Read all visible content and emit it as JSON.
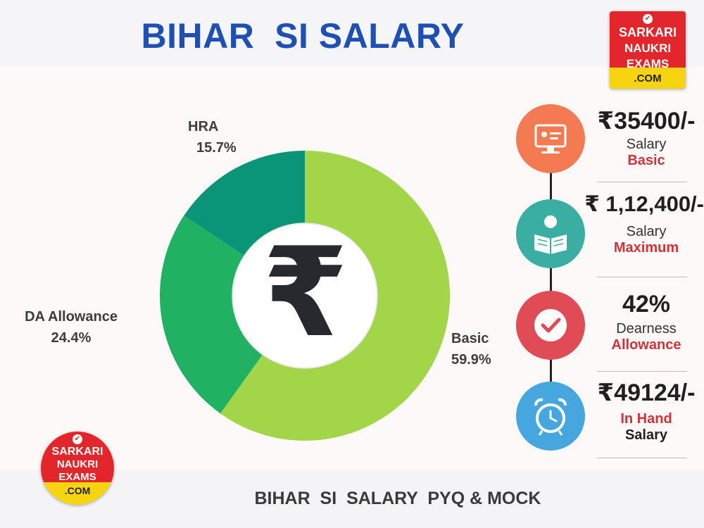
{
  "title": "BIHAR  SI SALARY",
  "footer": "BIHAR  SI  SALARY  PYQ & MOCK",
  "logo": {
    "line1": "SARKARI",
    "line2": "NAUKRI",
    "line3": "EXAMS",
    "line4": ".COM"
  },
  "center_symbol": "₹",
  "chart_data": {
    "type": "pie",
    "style": "donut",
    "slices": [
      {
        "label": "Basic",
        "percent_text": "59.9%",
        "value": 59.9,
        "color": "#a3d548"
      },
      {
        "label": "DA Allowance",
        "percent_text": "24.4%",
        "value": 24.4,
        "color": "#20b162"
      },
      {
        "label": "HRA",
        "percent_text": "15.7%",
        "value": 15.7,
        "color": "#0a9478"
      }
    ]
  },
  "info_cards": [
    {
      "value": "₹35400/-",
      "line1": "Salary",
      "line2": "Basic",
      "icon": "monitor-icon",
      "color": "#f47a52"
    },
    {
      "value": "₹ 1,12,400/-",
      "line1": "Salary",
      "line2": "Maximum",
      "icon": "reader-icon",
      "color": "#3aaea3"
    },
    {
      "value": "42%",
      "line1": "Dearness",
      "line2": "Allowance",
      "icon": "checkmark-icon",
      "color": "#e04b55"
    },
    {
      "value": "₹49124/-",
      "line1": "In Hand",
      "line2": "Salary",
      "icon": "alarm-clock-icon",
      "color": "#45a7dd"
    }
  ]
}
